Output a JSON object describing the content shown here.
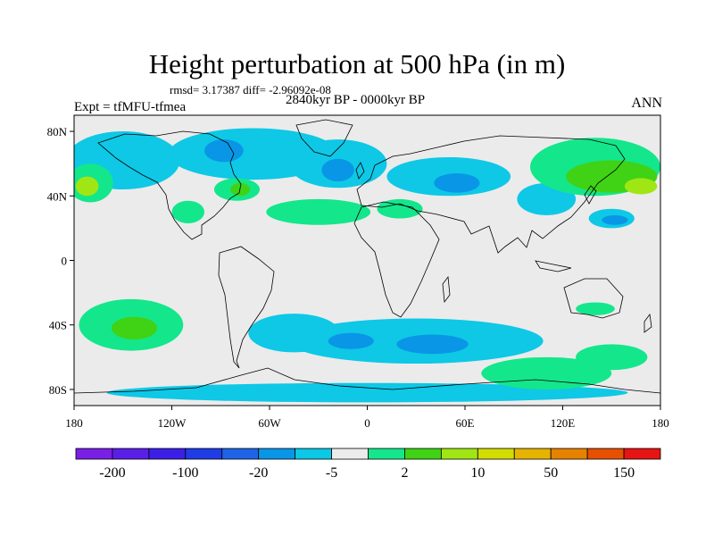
{
  "figure": {
    "title": "Height perturbation at 500 hPa (in m)",
    "stats": "rmsd= 3.17387 diff= -2.96092e-08",
    "expt": "Expt = tfMFU-tfmea",
    "period": "2840kyr BP - 0000kyr BP",
    "season": "ANN"
  },
  "map": {
    "projection": "cylindrical-equidistant",
    "lon_range": [
      -180,
      180
    ],
    "lat_range": [
      -90,
      90
    ],
    "x_ticks": [
      {
        "lon": -180,
        "label": "180"
      },
      {
        "lon": -120,
        "label": "120W"
      },
      {
        "lon": -60,
        "label": "60W"
      },
      {
        "lon": 0,
        "label": "0"
      },
      {
        "lon": 60,
        "label": "60E"
      },
      {
        "lon": 120,
        "label": "120E"
      },
      {
        "lon": 180,
        "label": "180"
      }
    ],
    "y_ticks": [
      {
        "lat": 80,
        "label": "80N"
      },
      {
        "lat": 40,
        "label": "40N"
      },
      {
        "lat": 0,
        "label": "0"
      },
      {
        "lat": -40,
        "label": "40S"
      },
      {
        "lat": -80,
        "label": "80S"
      }
    ],
    "background_color": "#ebebeb",
    "regions": [
      {
        "name": "arctic-north-pacific",
        "color": "#0ec8e6",
        "lon": -150,
        "lat": 62,
        "rx": 35,
        "ry": 18
      },
      {
        "name": "arctic-north-america",
        "color": "#0ec8e6",
        "lon": -70,
        "lat": 66,
        "rx": 52,
        "ry": 16
      },
      {
        "name": "arctic-north-atlantic",
        "color": "#0ec8e6",
        "lon": -18,
        "lat": 60,
        "rx": 30,
        "ry": 15
      },
      {
        "name": "eurasia-band",
        "color": "#0ec8e6",
        "lon": 50,
        "lat": 52,
        "rx": 38,
        "ry": 12
      },
      {
        "name": "far-east-siberia",
        "color": "#0ec8e6",
        "lon": 110,
        "lat": 38,
        "rx": 18,
        "ry": 10
      },
      {
        "name": "north-pacific-east",
        "color": "#0ec8e6",
        "lon": 150,
        "lat": 26,
        "rx": 14,
        "ry": 6
      },
      {
        "name": "baffin-low",
        "color": "#0a96e6",
        "lon": -88,
        "lat": 68,
        "rx": 12,
        "ry": 7
      },
      {
        "name": "iceland-low",
        "color": "#0a96e6",
        "lon": -18,
        "lat": 56,
        "rx": 10,
        "ry": 7
      },
      {
        "name": "europe-low",
        "color": "#0a96e6",
        "lon": 55,
        "lat": 48,
        "rx": 14,
        "ry": 6
      },
      {
        "name": "pacific-low",
        "color": "#0a96e6",
        "lon": 152,
        "lat": 25,
        "rx": 8,
        "ry": 3
      },
      {
        "name": "southern-ocean-band",
        "color": "#0ec8e6",
        "lon": 30,
        "lat": -50,
        "rx": 78,
        "ry": 14
      },
      {
        "name": "south-america-tongue",
        "color": "#0ec8e6",
        "lon": -45,
        "lat": -45,
        "rx": 28,
        "ry": 12
      },
      {
        "name": "south-atlantic-low",
        "color": "#0a96e6",
        "lon": 40,
        "lat": -52,
        "rx": 22,
        "ry": 6
      },
      {
        "name": "south-indian-low",
        "color": "#0a96e6",
        "lon": -10,
        "lat": -50,
        "rx": 14,
        "ry": 5
      },
      {
        "name": "antarctic-coast",
        "color": "#0ec8e6",
        "lon": 0,
        "lat": -82,
        "rx": 160,
        "ry": 6
      },
      {
        "name": "siberia-high",
        "color": "#14e68c",
        "lon": 140,
        "lat": 58,
        "rx": 40,
        "ry": 18
      },
      {
        "name": "siberia-core",
        "color": "#40d214",
        "lon": 150,
        "lat": 52,
        "rx": 28,
        "ry": 10
      },
      {
        "name": "siberia-peak",
        "color": "#a0e614",
        "lon": 168,
        "lat": 46,
        "rx": 10,
        "ry": 5
      },
      {
        "name": "north-pacific-west-high",
        "color": "#14e68c",
        "lon": -170,
        "lat": 48,
        "rx": 14,
        "ry": 12
      },
      {
        "name": "north-pacific-west-core",
        "color": "#a0e614",
        "lon": -172,
        "lat": 46,
        "rx": 7,
        "ry": 6
      },
      {
        "name": "north-atlantic-high",
        "color": "#14e68c",
        "lon": -30,
        "lat": 30,
        "rx": 32,
        "ry": 8
      },
      {
        "name": "mediterranean-high",
        "color": "#14e68c",
        "lon": 20,
        "lat": 32,
        "rx": 14,
        "ry": 6
      },
      {
        "name": "eastern-us-high",
        "color": "#14e68c",
        "lon": -80,
        "lat": 44,
        "rx": 14,
        "ry": 7
      },
      {
        "name": "eastern-us-core",
        "color": "#40d214",
        "lon": -78,
        "lat": 44,
        "rx": 6,
        "ry": 4
      },
      {
        "name": "western-us-high",
        "color": "#14e68c",
        "lon": -110,
        "lat": 30,
        "rx": 10,
        "ry": 7
      },
      {
        "name": "south-pacific-high",
        "color": "#14e68c",
        "lon": -145,
        "lat": -40,
        "rx": 32,
        "ry": 16
      },
      {
        "name": "south-pacific-core",
        "color": "#40d214",
        "lon": -143,
        "lat": -42,
        "rx": 14,
        "ry": 7
      },
      {
        "name": "south-indian-high",
        "color": "#14e68c",
        "lon": 110,
        "lat": -70,
        "rx": 40,
        "ry": 10
      },
      {
        "name": "australia-high",
        "color": "#14e68c",
        "lon": 140,
        "lat": -30,
        "rx": 12,
        "ry": 4
      },
      {
        "name": "southern-ocean-east-high",
        "color": "#14e68c",
        "lon": 150,
        "lat": -60,
        "rx": 22,
        "ry": 8
      }
    ]
  },
  "colorbar": {
    "colors": [
      "#7a1fe6",
      "#5a1fe6",
      "#3c1fe6",
      "#1f3ce6",
      "#1f64e6",
      "#0a96e6",
      "#0ac8e6",
      "#ebebeb",
      "#14e68c",
      "#40d214",
      "#a0e614",
      "#d2dc00",
      "#e6b400",
      "#e68200",
      "#e65000",
      "#e61414"
    ],
    "labels": [
      {
        "boundary": 1,
        "text": "-200"
      },
      {
        "boundary": 3,
        "text": "-100"
      },
      {
        "boundary": 5,
        "text": "-20"
      },
      {
        "boundary": 7,
        "text": "-5"
      },
      {
        "boundary": 9,
        "text": "2"
      },
      {
        "boundary": 11,
        "text": "10"
      },
      {
        "boundary": 13,
        "text": "50"
      },
      {
        "boundary": 15,
        "text": "150"
      }
    ]
  }
}
